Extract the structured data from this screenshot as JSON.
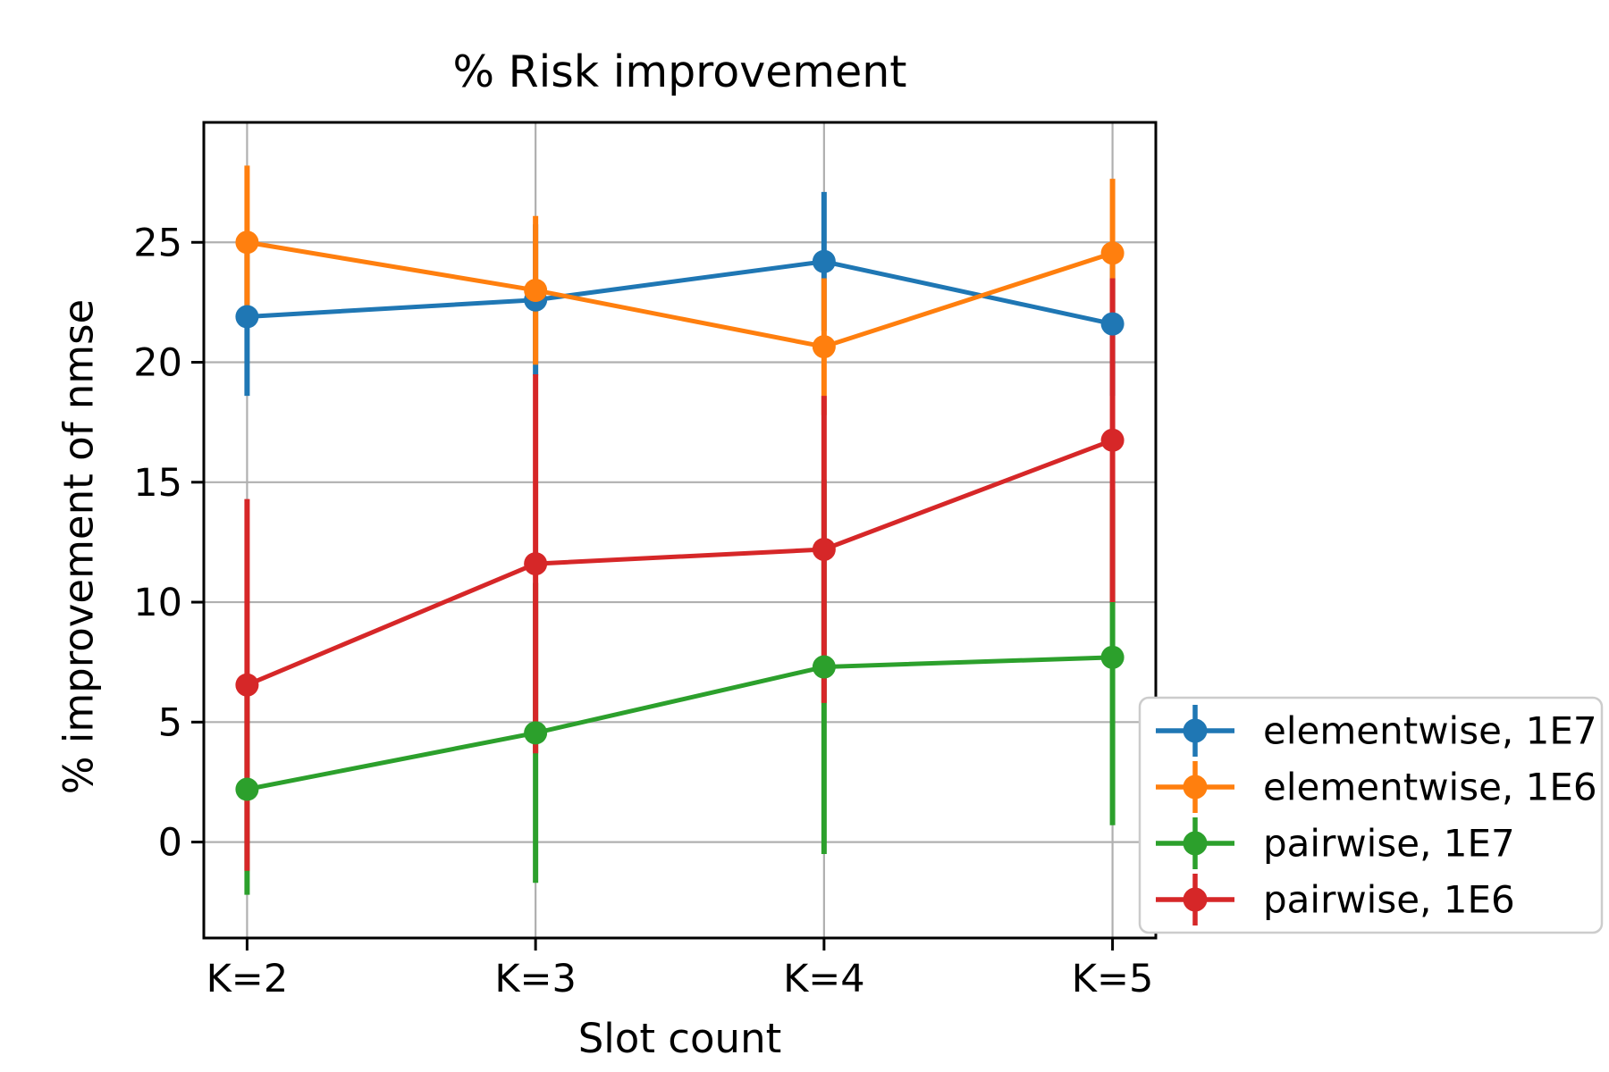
{
  "chart_data": {
    "type": "line",
    "style": "errorbar",
    "title": "% Risk improvement",
    "xlabel": "Slot count",
    "ylabel": "% improvement of nmse",
    "categories": [
      "K=2",
      "K=3",
      "K=4",
      "K=5"
    ],
    "series": [
      {
        "name": "elementwise, 1E7",
        "color": "#1f77b4",
        "values": [
          21.9,
          22.6,
          24.2,
          21.6
        ],
        "yerr": [
          3.3,
          3.15,
          2.9,
          3.0
        ]
      },
      {
        "name": "elementwise, 1E6",
        "color": "#ff7f0e",
        "values": [
          25.0,
          23.0,
          20.65,
          24.55
        ],
        "yerr": [
          3.2,
          3.1,
          2.85,
          3.1
        ]
      },
      {
        "name": "pairwise, 1E7",
        "color": "#2ca02c",
        "values": [
          2.2,
          4.55,
          7.3,
          7.7
        ],
        "yerr": [
          4.4,
          6.25,
          7.8,
          7.0
        ]
      },
      {
        "name": "pairwise, 1E6",
        "color": "#d62728",
        "values": [
          6.55,
          11.6,
          12.2,
          16.75
        ],
        "yerr": [
          7.75,
          7.9,
          6.4,
          6.75
        ]
      }
    ],
    "ylim": [
      -4,
      30
    ],
    "yticks": [
      0,
      5,
      10,
      15,
      20,
      25
    ],
    "grid": true,
    "legend": {
      "position": "lower right",
      "labels": [
        "elementwise, 1E7",
        "elementwise, 1E6",
        "pairwise, 1E7",
        "pairwise, 1E6"
      ]
    },
    "colors": {
      "background": "#ffffff",
      "grid": "#b0b0b0",
      "spine": "#000000",
      "tick_label": "#000000",
      "legend_border": "#cccccc",
      "legend_background": "#ffffff"
    }
  }
}
